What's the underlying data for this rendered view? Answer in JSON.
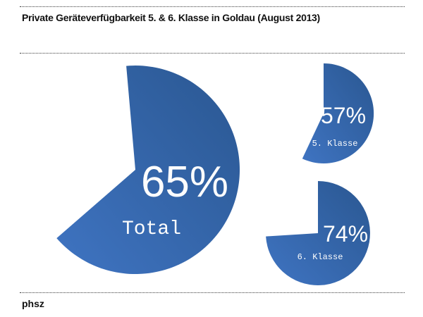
{
  "title": "Private Geräteverfügbarkeit 5. & 6. Klasse in Goldau (August 2013)",
  "footer": "phsz",
  "colors": {
    "pie_gradient_light": "#3f74c2",
    "pie_gradient_dark": "#2a5791",
    "text_on_pie": "#fdfdfd",
    "title_text": "#111111",
    "divider": "#3c3c3c",
    "background": "#ffffff"
  },
  "chart_data": {
    "type": "pie",
    "title": "Private Geräteverfügbarkeit 5. & 6. Klasse in Goldau (August 2013)",
    "unit": "%",
    "series": [
      {
        "name": "Total",
        "value": 65,
        "label": "65%"
      },
      {
        "name": "5. Klasse",
        "value": 57,
        "label": "57%"
      },
      {
        "name": "6. Klasse",
        "value": 74,
        "label": "74%"
      }
    ],
    "legend": "none",
    "layout_hint": "Three separate percentage pies: large Total pie on the left, small 5. Klasse pie top-right, small 6. Klasse pie bottom-right; each pie is filled clockwise from 12 o'clock by its percentage, remainder is blank white"
  }
}
